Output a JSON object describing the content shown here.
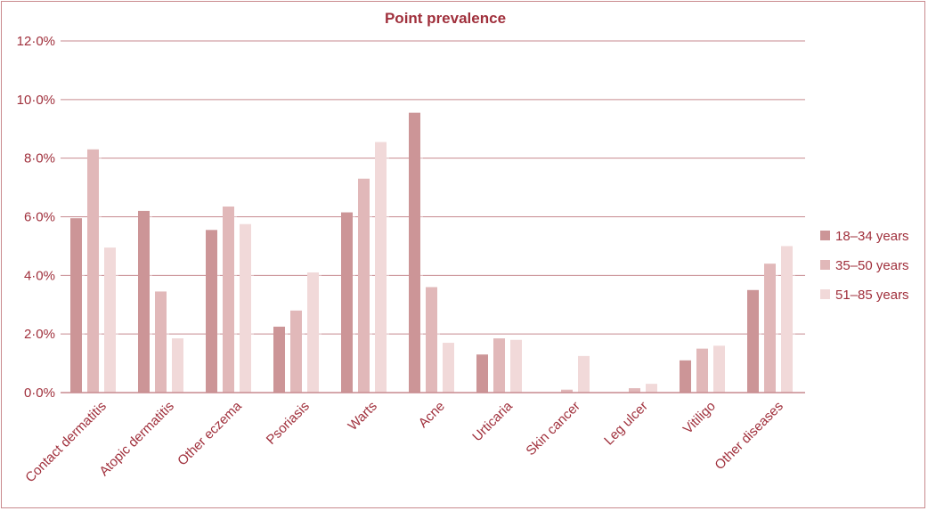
{
  "chart_data": {
    "type": "bar",
    "title": "Point prevalence",
    "xlabel": "",
    "ylabel": "",
    "ylim": [
      0,
      12
    ],
    "yticks": [
      {
        "value": 0,
        "label": "0·0%"
      },
      {
        "value": 2,
        "label": "2·0%"
      },
      {
        "value": 4,
        "label": "4·0%"
      },
      {
        "value": 6,
        "label": "6·0%"
      },
      {
        "value": 8,
        "label": "8·0%"
      },
      {
        "value": 10,
        "label": "10·0%"
      },
      {
        "value": 12,
        "label": "12·0%"
      }
    ],
    "grid": true,
    "legend_position": "right",
    "categories": [
      "Contact dermatitis",
      "Atopic dermatitis",
      "Other eczema",
      "Psoriasis",
      "Warts",
      "Acne",
      "Urticaria",
      "Skin cancer",
      "Leg ulcer",
      "Vitiligo",
      "Other diseases"
    ],
    "series": [
      {
        "name": "18–34 years",
        "color": "#cc9597",
        "values": [
          5.95,
          6.2,
          5.55,
          2.25,
          6.15,
          9.55,
          1.3,
          0.0,
          0.0,
          1.1,
          3.5
        ]
      },
      {
        "name": "35–50 years",
        "color": "#e1b8b9",
        "values": [
          8.3,
          3.45,
          6.35,
          2.8,
          7.3,
          3.6,
          1.85,
          0.1,
          0.15,
          1.5,
          4.4
        ]
      },
      {
        "name": "51–85 years",
        "color": "#f1d9d9",
        "values": [
          4.95,
          1.85,
          5.75,
          4.1,
          8.55,
          1.7,
          1.8,
          1.25,
          0.3,
          1.6,
          5.0
        ]
      }
    ]
  }
}
